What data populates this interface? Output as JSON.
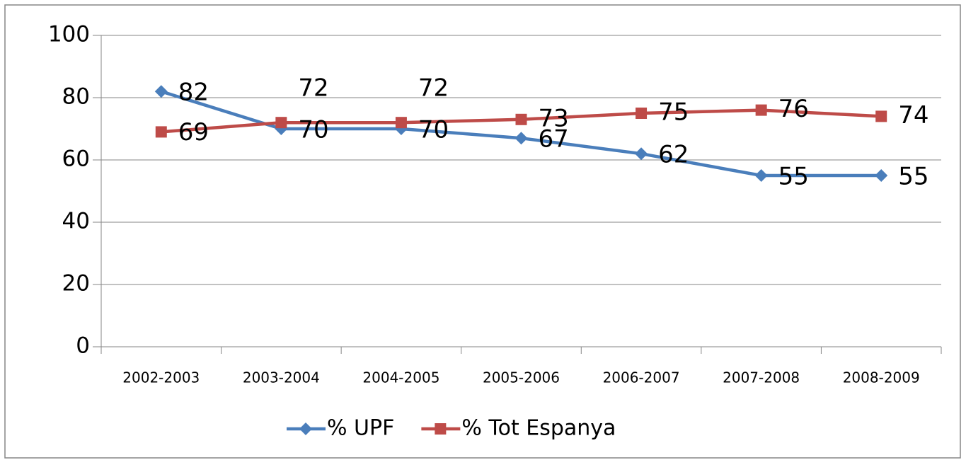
{
  "chart_data": {
    "type": "line",
    "categories": [
      "2002-2003",
      "2003-2004",
      "2004-2005",
      "2005-2006",
      "2006-2007",
      "2007-2008",
      "2008-2009"
    ],
    "series": [
      {
        "name": "% UPF",
        "color": "#4a7ebb",
        "marker": "diamond",
        "values": [
          82,
          70,
          70,
          67,
          62,
          55,
          55
        ]
      },
      {
        "name": "% Tot Espanya",
        "color": "#be4b48",
        "marker": "square",
        "values": [
          69,
          72,
          72,
          73,
          75,
          76,
          74
        ]
      }
    ],
    "ylim": [
      0,
      100
    ],
    "yticks": [
      0,
      20,
      40,
      60,
      80,
      100
    ],
    "grid": true,
    "legend": "bottom"
  }
}
